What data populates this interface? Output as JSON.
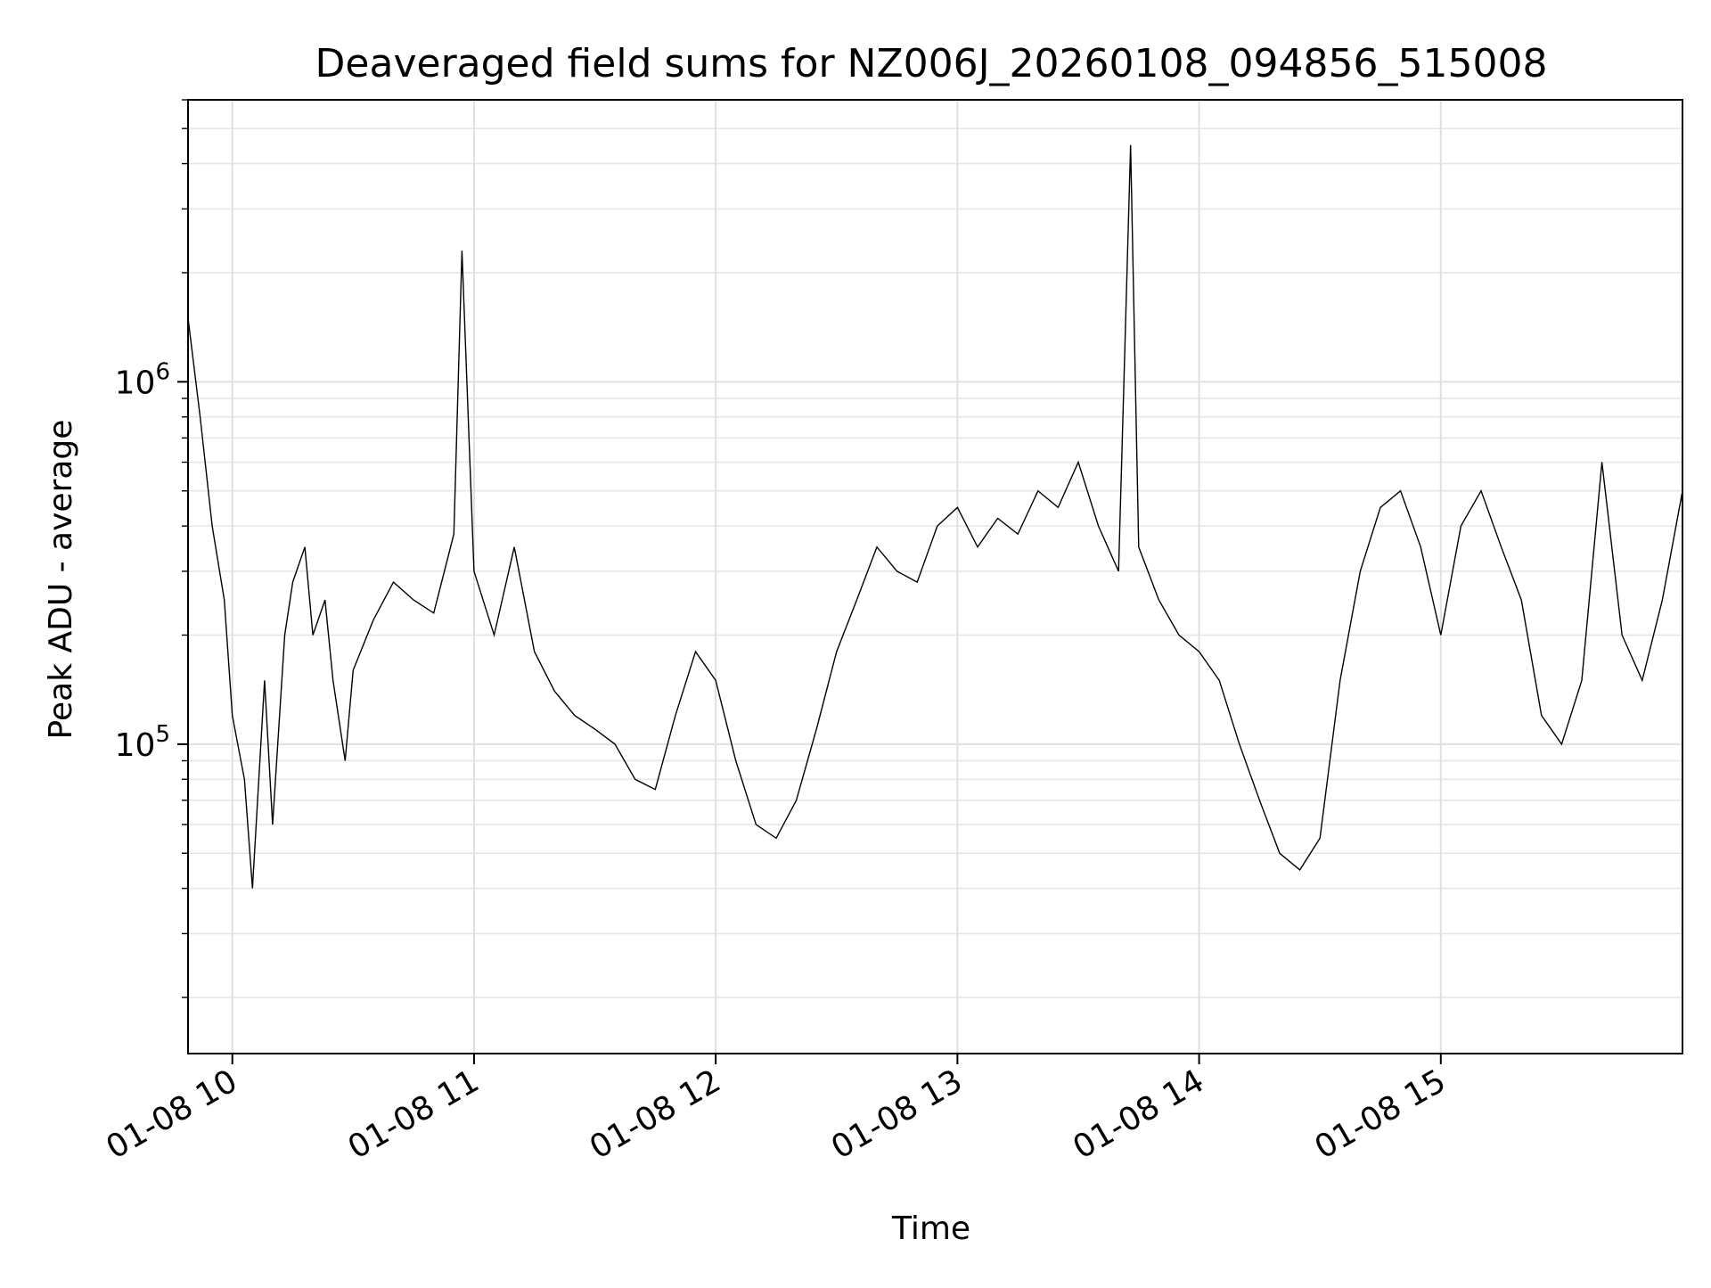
{
  "chart_data": {
    "type": "line",
    "title": "Deaveraged field sums for NZ006J_20260108_094856_515008",
    "xlabel": "Time",
    "ylabel": "Peak ADU - average",
    "x_range": [
      "2026-01-08 09:49",
      "2026-01-08 16:00"
    ],
    "y_scale": "log",
    "ylim": [
      14000,
      6000000
    ],
    "grid": true,
    "legend": "none",
    "line_color": "#000000",
    "x_ticks": [
      {
        "label": "01-08 10",
        "value": "2026-01-08 10:00"
      },
      {
        "label": "01-08 11",
        "value": "2026-01-08 11:00"
      },
      {
        "label": "01-08 12",
        "value": "2026-01-08 12:00"
      },
      {
        "label": "01-08 13",
        "value": "2026-01-08 13:00"
      },
      {
        "label": "01-08 14",
        "value": "2026-01-08 14:00"
      },
      {
        "label": "01-08 15",
        "value": "2026-01-08 15:00"
      }
    ],
    "y_ticks": [
      {
        "base": "10",
        "exp": "5",
        "value": 100000
      },
      {
        "base": "10",
        "exp": "6",
        "value": 1000000
      }
    ],
    "series": [
      {
        "points": [
          [
            "2026-01-08 09:49",
            1500000
          ],
          [
            "2026-01-08 09:52",
            800000
          ],
          [
            "2026-01-08 09:55",
            400000
          ],
          [
            "2026-01-08 09:58",
            250000
          ],
          [
            "2026-01-08 10:00",
            120000
          ],
          [
            "2026-01-08 10:03",
            80000
          ],
          [
            "2026-01-08 10:05",
            40000
          ],
          [
            "2026-01-08 10:08",
            150000
          ],
          [
            "2026-01-08 10:10",
            60000
          ],
          [
            "2026-01-08 10:13",
            200000
          ],
          [
            "2026-01-08 10:15",
            280000
          ],
          [
            "2026-01-08 10:18",
            350000
          ],
          [
            "2026-01-08 10:20",
            200000
          ],
          [
            "2026-01-08 10:23",
            250000
          ],
          [
            "2026-01-08 10:25",
            150000
          ],
          [
            "2026-01-08 10:28",
            90000
          ],
          [
            "2026-01-08 10:30",
            160000
          ],
          [
            "2026-01-08 10:35",
            220000
          ],
          [
            "2026-01-08 10:40",
            280000
          ],
          [
            "2026-01-08 10:45",
            250000
          ],
          [
            "2026-01-08 10:50",
            230000
          ],
          [
            "2026-01-08 10:55",
            380000
          ],
          [
            "2026-01-08 10:57",
            2300000
          ],
          [
            "2026-01-08 11:00",
            300000
          ],
          [
            "2026-01-08 11:05",
            200000
          ],
          [
            "2026-01-08 11:10",
            350000
          ],
          [
            "2026-01-08 11:15",
            180000
          ],
          [
            "2026-01-08 11:20",
            140000
          ],
          [
            "2026-01-08 11:25",
            120000
          ],
          [
            "2026-01-08 11:30",
            110000
          ],
          [
            "2026-01-08 11:35",
            100000
          ],
          [
            "2026-01-08 11:40",
            80000
          ],
          [
            "2026-01-08 11:45",
            75000
          ],
          [
            "2026-01-08 11:50",
            120000
          ],
          [
            "2026-01-08 11:55",
            180000
          ],
          [
            "2026-01-08 12:00",
            150000
          ],
          [
            "2026-01-08 12:05",
            90000
          ],
          [
            "2026-01-08 12:10",
            60000
          ],
          [
            "2026-01-08 12:15",
            55000
          ],
          [
            "2026-01-08 12:20",
            70000
          ],
          [
            "2026-01-08 12:25",
            110000
          ],
          [
            "2026-01-08 12:30",
            180000
          ],
          [
            "2026-01-08 12:35",
            250000
          ],
          [
            "2026-01-08 12:40",
            350000
          ],
          [
            "2026-01-08 12:45",
            300000
          ],
          [
            "2026-01-08 12:50",
            280000
          ],
          [
            "2026-01-08 12:55",
            400000
          ],
          [
            "2026-01-08 13:00",
            450000
          ],
          [
            "2026-01-08 13:05",
            350000
          ],
          [
            "2026-01-08 13:10",
            420000
          ],
          [
            "2026-01-08 13:15",
            380000
          ],
          [
            "2026-01-08 13:20",
            500000
          ],
          [
            "2026-01-08 13:25",
            450000
          ],
          [
            "2026-01-08 13:30",
            600000
          ],
          [
            "2026-01-08 13:35",
            400000
          ],
          [
            "2026-01-08 13:40",
            300000
          ],
          [
            "2026-01-08 13:43",
            4500000
          ],
          [
            "2026-01-08 13:45",
            350000
          ],
          [
            "2026-01-08 13:50",
            250000
          ],
          [
            "2026-01-08 13:55",
            200000
          ],
          [
            "2026-01-08 14:00",
            180000
          ],
          [
            "2026-01-08 14:05",
            150000
          ],
          [
            "2026-01-08 14:10",
            100000
          ],
          [
            "2026-01-08 14:15",
            70000
          ],
          [
            "2026-01-08 14:20",
            50000
          ],
          [
            "2026-01-08 14:25",
            45000
          ],
          [
            "2026-01-08 14:30",
            55000
          ],
          [
            "2026-01-08 14:35",
            150000
          ],
          [
            "2026-01-08 14:40",
            300000
          ],
          [
            "2026-01-08 14:45",
            450000
          ],
          [
            "2026-01-08 14:50",
            500000
          ],
          [
            "2026-01-08 14:55",
            350000
          ],
          [
            "2026-01-08 15:00",
            200000
          ],
          [
            "2026-01-08 15:05",
            400000
          ],
          [
            "2026-01-08 15:10",
            500000
          ],
          [
            "2026-01-08 15:15",
            350000
          ],
          [
            "2026-01-08 15:20",
            250000
          ],
          [
            "2026-01-08 15:25",
            120000
          ],
          [
            "2026-01-08 15:30",
            100000
          ],
          [
            "2026-01-08 15:35",
            150000
          ],
          [
            "2026-01-08 15:40",
            600000
          ],
          [
            "2026-01-08 15:45",
            200000
          ],
          [
            "2026-01-08 15:50",
            150000
          ],
          [
            "2026-01-08 15:55",
            250000
          ],
          [
            "2026-01-08 16:00",
            500000
          ]
        ]
      }
    ]
  }
}
